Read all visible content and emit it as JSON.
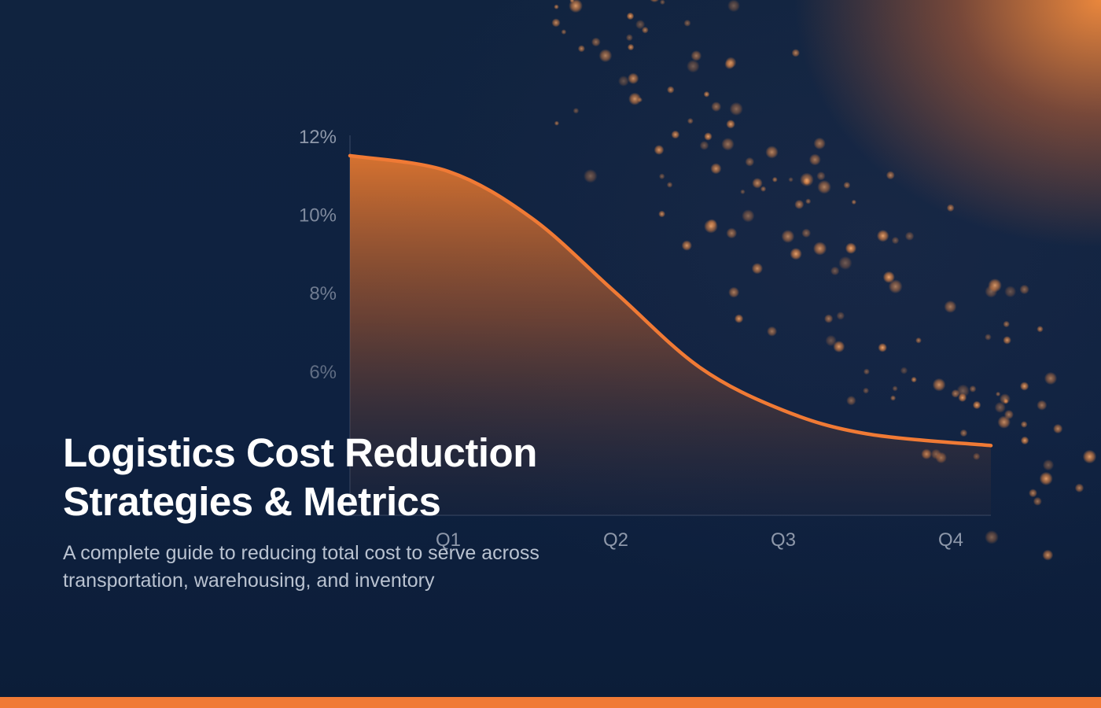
{
  "headline": {
    "line1": "Logistics Cost Reduction",
    "line2": "Strategies & Metrics"
  },
  "subtitle": {
    "line1": "A complete guide to reducing total cost to serve across",
    "line2": "transportation, warehousing, and inventory"
  },
  "colors": {
    "background": "#0f2240",
    "accent": "#f07a35",
    "tick_text": "#8e98aa"
  },
  "chart_data": {
    "type": "area",
    "categories": [
      "Q1",
      "Q2",
      "Q3",
      "Q4"
    ],
    "y_ticks": [
      "12%",
      "10%",
      "8%",
      "6%"
    ],
    "y_tick_values": [
      12,
      10,
      8,
      6
    ],
    "ylim": [
      4,
      12
    ],
    "curve": {
      "x": [
        0.5,
        1.0,
        1.5,
        2.0,
        2.5,
        3.0,
        3.5,
        4.3
      ],
      "y": [
        11.5,
        11.1,
        9.9,
        8.0,
        6.1,
        5.0,
        4.4,
        4.1
      ]
    },
    "grid": false,
    "legend": "none"
  }
}
